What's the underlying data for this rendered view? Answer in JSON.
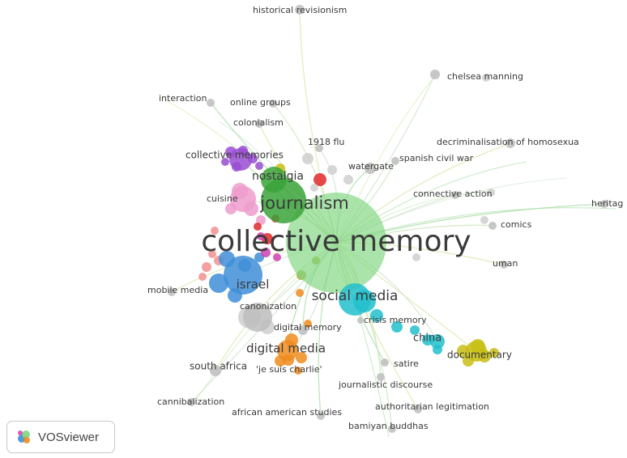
{
  "app": {
    "logo_text": "VOSviewer"
  },
  "network": {
    "colors": {
      "green": "#7ed67e",
      "darkgreen": "#3aa33a",
      "grey": "#bdbdbd",
      "lightgrey": "#cfcfcf",
      "cyan": "#22c0cc",
      "blue": "#3f8ed8",
      "orange": "#f08c1e",
      "yellow": "#c8be14",
      "purple": "#9a4ed2",
      "pink": "#ee9ccc",
      "red": "#e02828",
      "salmon": "#f29090",
      "magenta": "#d040b0",
      "olive": "#a8b040",
      "teal": "#2a9d9d"
    },
    "labels": [
      {
        "text": "collective memory",
        "cluster": "green"
      },
      {
        "text": "journalism",
        "cluster": "darkgreen"
      },
      {
        "text": "social media",
        "cluster": "cyan"
      },
      {
        "text": "israel",
        "cluster": "blue"
      },
      {
        "text": "digital media",
        "cluster": "orange"
      },
      {
        "text": "nostalgia",
        "cluster": "darkgreen"
      },
      {
        "text": "documentary",
        "cluster": "yellow"
      },
      {
        "text": "china",
        "cluster": "cyan"
      },
      {
        "text": "collective memories",
        "cluster": "purple"
      },
      {
        "text": "cuisine",
        "cluster": "pink"
      },
      {
        "text": "mobile media",
        "cluster": "grey"
      },
      {
        "text": "canonization",
        "cluster": "grey"
      },
      {
        "text": "digital memory",
        "cluster": "grey"
      },
      {
        "text": "crisis memory",
        "cluster": "grey"
      },
      {
        "text": "south africa",
        "cluster": "grey"
      },
      {
        "text": "'je suis charlie'",
        "cluster": "orange"
      },
      {
        "text": "satire",
        "cluster": "grey"
      },
      {
        "text": "journalistic discourse",
        "cluster": "grey"
      },
      {
        "text": "authoritarian legitimation",
        "cluster": "grey"
      },
      {
        "text": "cannibalization",
        "cluster": "grey"
      },
      {
        "text": "african american studies",
        "cluster": "grey"
      },
      {
        "text": "bamiyan buddhas",
        "cluster": "grey"
      },
      {
        "text": "historical revisionism",
        "cluster": "grey"
      },
      {
        "text": "chelsea manning",
        "cluster": "grey"
      },
      {
        "text": "interaction",
        "cluster": "grey"
      },
      {
        "text": "online groups",
        "cluster": "grey"
      },
      {
        "text": "colonialism",
        "cluster": "grey"
      },
      {
        "text": "1918 flu",
        "cluster": "grey"
      },
      {
        "text": "watergate",
        "cluster": "grey"
      },
      {
        "text": "spanish civil war",
        "cluster": "grey"
      },
      {
        "text": "decriminalisation of homosexua",
        "cluster": "grey"
      },
      {
        "text": "connective action",
        "cluster": "grey"
      },
      {
        "text": "heritag",
        "cluster": "grey"
      },
      {
        "text": "comics",
        "cluster": "grey"
      },
      {
        "text": "uman",
        "cluster": "grey"
      }
    ]
  }
}
